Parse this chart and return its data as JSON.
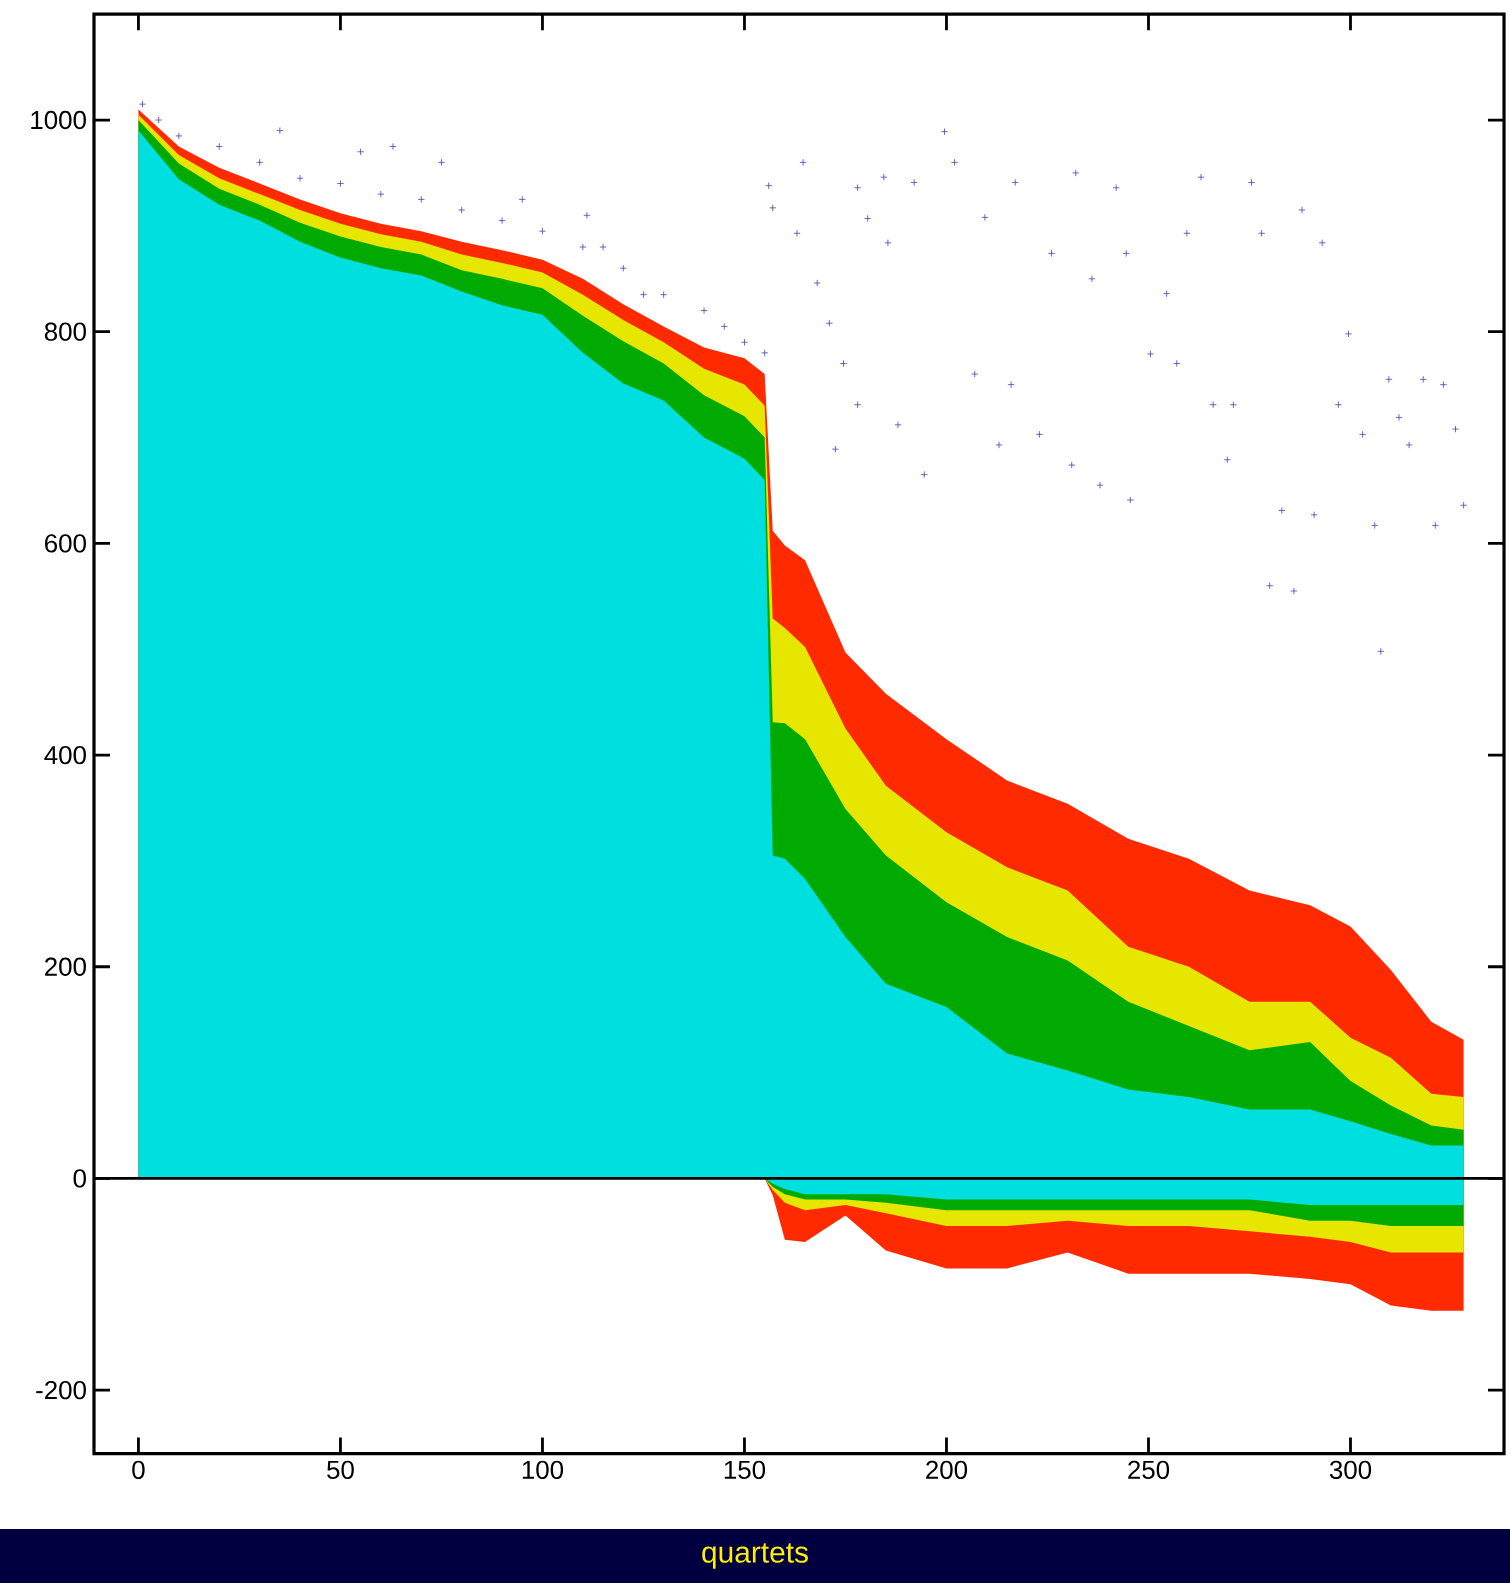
{
  "chart_data": {
    "type": "area",
    "xlabel": "quartets",
    "x": [
      0,
      10,
      20,
      30,
      40,
      50,
      60,
      70,
      80,
      90,
      100,
      110,
      120,
      130,
      140,
      150,
      155,
      157,
      160,
      165,
      175,
      185,
      200,
      215,
      230,
      245,
      260,
      275,
      290,
      300,
      310,
      320,
      328
    ],
    "series": [
      {
        "color": "#ff2a00",
        "values": [
          1010,
          975,
          955,
          940,
          925,
          912,
          902,
          895,
          885,
          877,
          868,
          850,
          826,
          805,
          785,
          775,
          760,
          612,
          598,
          584,
          497,
          458,
          415,
          376,
          354,
          321,
          302,
          272,
          258,
          238,
          197,
          148,
          131
        ]
      },
      {
        "color": "#e6e600",
        "values": [
          1005,
          967,
          945,
          930,
          915,
          902,
          892,
          885,
          873,
          865,
          856,
          835,
          811,
          790,
          765,
          750,
          730,
          529,
          520,
          502,
          425,
          371,
          327,
          294,
          272,
          219,
          200,
          167,
          167,
          133,
          114,
          80,
          77
        ]
      },
      {
        "color": "#00aa00",
        "values": [
          1000,
          959,
          935,
          920,
          903,
          890,
          880,
          873,
          858,
          850,
          841,
          815,
          791,
          770,
          740,
          720,
          700,
          431,
          430,
          415,
          349,
          305,
          261,
          228,
          206,
          167,
          144,
          121,
          129,
          92,
          69,
          50,
          46
        ]
      },
      {
        "color": "#00dfdf",
        "values": [
          990,
          944,
          920,
          905,
          885,
          870,
          860,
          853,
          838,
          825,
          816,
          780,
          751,
          735,
          700,
          680,
          660,
          305,
          302,
          283,
          228,
          184,
          162,
          118,
          102,
          84,
          77,
          65,
          65,
          54,
          42,
          31,
          31
        ]
      },
      {
        "color": "#ff2a00",
        "values": [
          0,
          0,
          0,
          0,
          0,
          0,
          0,
          0,
          0,
          0,
          0,
          0,
          0,
          0,
          0,
          0,
          0,
          -16,
          -58,
          -60,
          -35,
          -68,
          -85,
          -85,
          -70,
          -90,
          -90,
          -90,
          -95,
          -100,
          -120,
          -125,
          -125
        ]
      },
      {
        "color": "#e6e600",
        "values": [
          0,
          0,
          0,
          0,
          0,
          0,
          0,
          0,
          0,
          0,
          0,
          0,
          0,
          0,
          0,
          0,
          0,
          -11,
          -23,
          -30,
          -25,
          -33,
          -45,
          -45,
          -40,
          -45,
          -45,
          -50,
          -55,
          -60,
          -70,
          -70,
          -70
        ]
      },
      {
        "color": "#00aa00",
        "values": [
          0,
          0,
          0,
          0,
          0,
          0,
          0,
          0,
          0,
          0,
          0,
          0,
          0,
          0,
          0,
          0,
          0,
          -8,
          -15,
          -20,
          -20,
          -23,
          -30,
          -30,
          -30,
          -30,
          -30,
          -30,
          -40,
          -40,
          -45,
          -45,
          -45
        ]
      },
      {
        "color": "#00dfdf",
        "values": [
          0,
          0,
          0,
          0,
          0,
          0,
          0,
          0,
          0,
          0,
          0,
          0,
          0,
          0,
          0,
          0,
          0,
          -5,
          -10,
          -15,
          -15,
          -15,
          -20,
          -20,
          -20,
          -20,
          -20,
          -20,
          -25,
          -25,
          -25,
          -25,
          -25
        ]
      },
      {
        "type": "scatter",
        "color": "#4444bb",
        "marker": "cross",
        "x": [
          1,
          5,
          10,
          20,
          30,
          35,
          40,
          50,
          55,
          60,
          63,
          70,
          75,
          80,
          90,
          95,
          100,
          110,
          111,
          115,
          120,
          125,
          130,
          140,
          145,
          150,
          155,
          156,
          157,
          164.5,
          163,
          168,
          171,
          174.5,
          172.5,
          178,
          178,
          180.5,
          184.5,
          188,
          185.5,
          192,
          194.5,
          199.5,
          202,
          207,
          209.5,
          213,
          216,
          217,
          223,
          226,
          231,
          232,
          236,
          238,
          242,
          244.5,
          245.5,
          250.5,
          254.5,
          257,
          259.5,
          263,
          266,
          269.5,
          271,
          275.5,
          278,
          280,
          283,
          286,
          288,
          291,
          293,
          297,
          299.5,
          303,
          306,
          307.5,
          309.5,
          312,
          314.5,
          318,
          321,
          323,
          326,
          328
        ],
        "values": [
          1015,
          1000,
          985,
          975,
          960,
          990,
          945,
          940,
          970,
          930,
          975,
          925,
          960,
          915,
          905,
          925,
          895,
          880,
          910,
          880,
          860,
          835,
          835,
          820,
          805,
          790,
          780,
          938,
          917,
          960,
          893,
          846,
          808,
          770,
          689,
          731,
          936,
          907,
          946,
          712,
          884,
          941,
          665,
          989,
          960,
          760,
          908,
          693,
          750,
          941,
          703,
          874,
          674,
          950,
          850,
          655,
          936,
          874,
          641,
          779,
          836,
          770,
          893,
          946,
          731,
          679,
          731,
          941,
          893,
          560,
          631,
          555,
          915,
          627,
          884,
          731,
          798,
          703,
          617,
          498,
          755,
          719,
          693,
          755,
          617,
          750,
          708,
          636
        ]
      }
    ],
    "ref_lines": [
      {
        "axis": "y",
        "value": 0
      }
    ],
    "xlim": [
      -11,
      338
    ],
    "ylim": [
      -260,
      1100
    ],
    "xticks": [
      0,
      50,
      100,
      150,
      200,
      250,
      300
    ],
    "yticks": [
      -200,
      0,
      200,
      400,
      600,
      800,
      1000
    ],
    "grid": false
  }
}
